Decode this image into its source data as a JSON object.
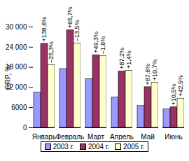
{
  "chart_data": {
    "type": "bar",
    "y_label": "GRP, %",
    "categories": [
      "Январь",
      "Февраль",
      "Март",
      "Апрель",
      "Май",
      "Июнь"
    ],
    "series": [
      {
        "name": "2003 г.",
        "color": "#9999ff",
        "values": [
          10500,
          17500,
          14500,
          9000,
          6500,
          5500
        ]
      },
      {
        "name": "2004 г.",
        "color": "#993366",
        "values": [
          25000,
          29000,
          21600,
          16800,
          12100,
          6100
        ]
      },
      {
        "name": "2005 г.",
        "color": "#ffffcc",
        "values": [
          18700,
          25100,
          21300,
          17000,
          13400,
          8700
        ]
      }
    ],
    "ylim": [
      0,
      30000
    ],
    "yticks": [
      0,
      6000,
      {
        "value": 12000,
        "label": "12 000"
      },
      {
        "value": 18000,
        "label": "18 000"
      },
      {
        "value": 24000,
        "label": "24 000"
      },
      {
        "value": 30000,
        "label": "30 000"
      }
    ],
    "legend": "bottom",
    "annotations": [
      {
        "category": "Январь",
        "series": "2004 г.",
        "text": "+138,6%"
      },
      {
        "category": "Январь",
        "series": "2005 г.",
        "text": "–25,3%"
      },
      {
        "category": "Февраль",
        "series": "2004 г.",
        "text": "+65,7%"
      },
      {
        "category": "Февраль",
        "series": "2005 г.",
        "text": "–13,5%"
      },
      {
        "category": "Март",
        "series": "2004 г.",
        "text": "+49,3%"
      },
      {
        "category": "Март",
        "series": "2005 г.",
        "text": "–1,6%"
      },
      {
        "category": "Апрель",
        "series": "2004 г.",
        "text": "+87,2%"
      },
      {
        "category": "Апрель",
        "series": "2005 г.",
        "text": "+1,4%"
      },
      {
        "category": "Май",
        "series": "2004 г.",
        "text": "+87,6%"
      },
      {
        "category": "Май",
        "series": "2005 г.",
        "text": "+10,7%"
      },
      {
        "category": "Июнь",
        "series": "2004 г.",
        "text": "+10,5%"
      },
      {
        "category": "Июнь",
        "series": "2005 г.",
        "text": "+42,5%"
      }
    ]
  }
}
